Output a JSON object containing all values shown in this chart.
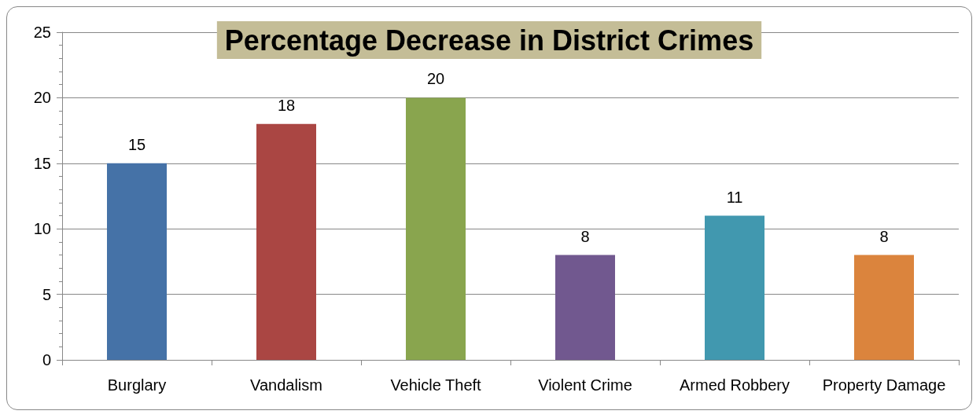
{
  "chart_data": {
    "type": "bar",
    "title": "Percentage Decrease in District Crimes",
    "categories": [
      "Burglary",
      "Vandalism",
      "Vehicle Theft",
      "Violent Crime",
      "Armed Robbery",
      "Property Damage"
    ],
    "values": [
      15,
      18,
      20,
      8,
      11,
      8
    ],
    "colors": [
      "#4572a7",
      "#aa4643",
      "#89a54e",
      "#71588f",
      "#4198af",
      "#db843d"
    ],
    "ylim": [
      0,
      25
    ],
    "yticks": [
      0,
      5,
      10,
      15,
      20,
      25
    ],
    "grid": "y",
    "data_labels": true
  }
}
